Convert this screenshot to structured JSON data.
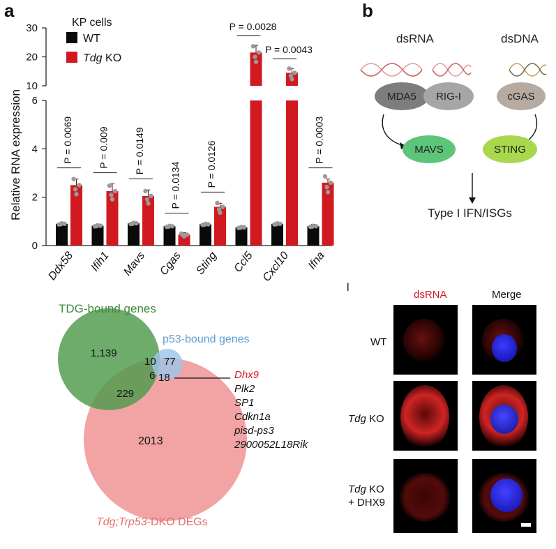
{
  "panel_a": {
    "letter": "a",
    "legend_title": "KP cells",
    "legend_wt": "WT",
    "legend_ko_italic": "Tdg",
    "legend_ko_rest": " KO",
    "ylabel": "Relative RNA expression",
    "colors": {
      "wt": "#0a0a0a",
      "ko": "#d11a1f",
      "dots": "#9a9a9a"
    }
  },
  "chart_data": {
    "type": "bar",
    "title": "",
    "xlabel": "",
    "ylabel": "Relative RNA expression",
    "categories": [
      "Ddx58",
      "Ifih1",
      "Mavs",
      "Cgas",
      "Sting",
      "Ccl5",
      "Cxcl10",
      "Ifna"
    ],
    "series": [
      {
        "name": "WT",
        "values": [
          0.9,
          0.82,
          0.92,
          0.8,
          0.88,
          0.75,
          0.9,
          0.8
        ],
        "errors": [
          0.05,
          0.06,
          0.04,
          0.05,
          0.05,
          0.06,
          0.05,
          0.08
        ]
      },
      {
        "name": "Tdg KO",
        "values": [
          2.5,
          2.25,
          2.05,
          0.45,
          1.6,
          21.5,
          14.5,
          2.6
        ],
        "errors": [
          0.25,
          0.3,
          0.25,
          0.08,
          0.15,
          2.5,
          1.5,
          0.15
        ]
      }
    ],
    "pvalues": [
      "P = 0.0069",
      "P = 0.009",
      "P = 0.0149",
      "P = 0.0134",
      "P = 0.0126",
      "P = 0.0028",
      "P = 0.0043",
      "P = 0.0003"
    ],
    "broken_axis": true,
    "lower_ylim": [
      0,
      6
    ],
    "upper_ylim": [
      10,
      30
    ],
    "lower_ticks": [
      "0",
      "2",
      "4",
      "6"
    ],
    "upper_ticks": [
      "10",
      "20",
      "30"
    ],
    "legend": "top-left"
  },
  "panel_b": {
    "letter": "b",
    "dsrna": "dsRNA",
    "dsdna": "dsDNA",
    "mda5": "MDA5",
    "rigi": "RIG-I",
    "cgas": "cGAS",
    "mavs": "MAVS",
    "sting": "STING",
    "output": "Type I IFN/ISGs"
  },
  "venn": {
    "tdg_title": "TDG-bound genes",
    "p53_title": "p53-bound genes",
    "dko_italic": "Tdg;Trp53",
    "dko_rest": "-DKO DEGs",
    "n_tdg_only": "1,139",
    "n_tdg_p53": "10",
    "n_p53_only": "77",
    "n_all": "6",
    "n_p53_dko": "18",
    "n_tdg_dko": "229",
    "n_dko_only": "2013",
    "highlight_gene": "Dhx9",
    "genes": [
      "Plk2",
      "SP1",
      "Cdkn1a",
      "pisd-ps3",
      "2900052L18Rik"
    ]
  },
  "micro": {
    "panel_mark": "l",
    "col_dsrna": "dsRNA",
    "col_merge": "Merge",
    "row_wt": "WT",
    "row_ko_italic": "Tdg",
    "row_ko_rest": " KO",
    "row_dhx9_italic": "Tdg",
    "row_dhx9_rest": " KO",
    "row_dhx9_line2": "+ DHX9"
  }
}
